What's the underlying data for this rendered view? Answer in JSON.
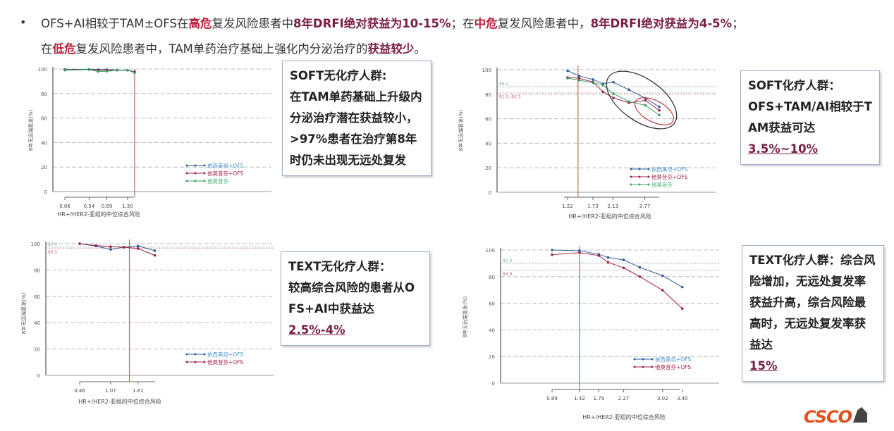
{
  "header": {
    "line1": [
      {
        "t": "OFS+AI相较于TAM±OFS在",
        "s": ""
      },
      {
        "t": "高危",
        "s": "red"
      },
      {
        "t": "复发风险患者中",
        "s": ""
      },
      {
        "t": "8年DRFI绝对获益为10-15%",
        "s": "mar"
      },
      {
        "t": "；在",
        "s": ""
      },
      {
        "t": "中危",
        "s": "red"
      },
      {
        "t": "复发风险患者中，",
        "s": ""
      },
      {
        "t": "8年DRFI绝对获益为4-5%",
        "s": "mar"
      },
      {
        "t": "；",
        "s": ""
      }
    ],
    "line2": [
      {
        "t": "在",
        "s": ""
      },
      {
        "t": "低危",
        "s": "red"
      },
      {
        "t": "复发风险患者中，TAM单药治疗基础上强化内分泌治疗的",
        "s": ""
      },
      {
        "t": "获益较少",
        "s": "mar"
      },
      {
        "t": "。",
        "s": ""
      }
    ],
    "bullet": "•"
  },
  "boxes": [
    {
      "title": "SOFT无化疗人群:",
      "body": "在TAM单药基础上升级内分泌治疗潜在获益较小，>97%患者在治疗第8年时仍未出现无远处复发",
      "pct": ""
    },
    {
      "title": "SOFT化疗人群：",
      "body": "OFS+TAM/AI相较于TAM获益可达",
      "pct": "3.5%~10%"
    },
    {
      "title": "TEXT无化疗人群：",
      "body": "较高综合风险的患者从OFS+AI中获益达",
      "pct": "2.5%-4%"
    },
    {
      "title": "TEXT化疗人群：",
      "body": "综合风险增加，无远处复发率获益升高，综合风险最高时，无远处复发率获益达",
      "pct": "15%"
    }
  ],
  "logo": "CSCO",
  "colors": {
    "blue": "#2f5f9a",
    "red": "#a0204a",
    "green": "#3aa060",
    "legend_blue": "#4a90c8",
    "legend_red": "#a0204a",
    "legend_green": "#4aab70"
  },
  "chart_data": [
    {
      "type": "line",
      "xlabel": "HR+/HER2-亚组的中位综合风险",
      "ylabel": "8年无远端复发(%)",
      "ylim": [
        0,
        100
      ],
      "yticks": [
        0,
        20,
        40,
        60,
        80,
        100
      ],
      "xticks": [
        0.06,
        0.54,
        0.89,
        1.3
      ],
      "xtick_labels": [
        "0.06",
        "0.54",
        "0.89",
        "1.30"
      ],
      "grid": true,
      "legend": "bottom-right",
      "vline": 1.44,
      "ref_lines": [],
      "series": [
        {
          "name": "依西美坦+OFS",
          "color": "blue",
          "x": [
            0.06,
            0.54,
            0.72,
            0.89,
            1.09,
            1.3,
            1.44
          ],
          "y": [
            99.6,
            99.8,
            99.5,
            99.5,
            99.2,
            99.0,
            97.8
          ]
        },
        {
          "name": "他莫昔芬+OFS",
          "color": "red",
          "x": [
            0.06,
            0.54,
            0.72,
            0.89,
            1.09,
            1.3,
            1.44
          ],
          "y": [
            99.3,
            99.5,
            99.0,
            99.0,
            99.0,
            99.0,
            97.5
          ]
        },
        {
          "name": "他莫昔芬",
          "color": "green",
          "x": [
            0.06,
            0.54,
            0.72,
            0.89,
            1.09,
            1.3,
            1.44
          ],
          "y": [
            99.0,
            99.5,
            98.0,
            98.2,
            99.0,
            99.0,
            97.0
          ]
        }
      ]
    },
    {
      "type": "line",
      "xlabel": "HR+/HER2-亚组的中位综合风险",
      "ylabel": "8年无远端复发(%)",
      "ylim": [
        0,
        100
      ],
      "yticks": [
        0,
        20,
        40,
        60,
        80,
        100
      ],
      "xticks": [
        1.22,
        1.73,
        2.13,
        2.77
      ],
      "xtick_labels": [
        "1.22",
        "1.73",
        "2.13",
        "2.77"
      ],
      "grid": true,
      "legend": "bottom-right",
      "vline": 1.43,
      "ref_lines": [
        {
          "value": 86.2,
          "label": "86.2"
        },
        {
          "value": 81.0,
          "label": "81.0, 80.3"
        }
      ],
      "series": [
        {
          "name": "依西美坦+OFS",
          "color": "blue",
          "x": [
            1.22,
            1.45,
            1.73,
            1.93,
            2.14,
            2.45,
            2.78,
            3.06
          ],
          "y": [
            99.2,
            95.0,
            92.0,
            88.5,
            89.8,
            83.7,
            76.8,
            69.7
          ]
        },
        {
          "name": "他莫昔芬+OFS",
          "color": "red",
          "x": [
            1.22,
            1.45,
            1.73,
            1.93,
            2.14,
            2.45,
            2.78,
            3.06
          ],
          "y": [
            93.7,
            93.0,
            90.0,
            82.0,
            77.0,
            73.0,
            75.0,
            66.8
          ]
        },
        {
          "name": "他莫昔芬",
          "color": "green",
          "x": [
            1.22,
            1.45,
            1.73,
            1.93,
            2.14,
            2.45,
            2.78,
            3.06
          ],
          "y": [
            93.0,
            91.4,
            89.4,
            87.5,
            80.4,
            74.0,
            71.0,
            63.0
          ]
        }
      ]
    },
    {
      "type": "line",
      "xlabel": "HR+/HER2-亚组的中位综合风险",
      "ylabel": "8年无远端复发(%)",
      "ylim": [
        0,
        100
      ],
      "yticks": [
        0,
        20,
        40,
        60,
        80,
        100
      ],
      "xticks": [
        0.46,
        1.07,
        1.61
      ],
      "xtick_labels": [
        "0.46",
        "1.07",
        "1.61"
      ],
      "grid": true,
      "legend": "bottom-right",
      "vline": 1.44,
      "ref_lines": [
        {
          "value": 97.4,
          "label": "97.4"
        },
        {
          "value": 96.5,
          "label": "96.5"
        }
      ],
      "series": [
        {
          "name": "依西美坦+OFS",
          "color": "blue",
          "x": [
            0.46,
            0.78,
            1.07,
            1.33,
            1.61,
            1.94
          ],
          "y": [
            100,
            98.2,
            95.6,
            97.3,
            98.2,
            94.7
          ]
        },
        {
          "name": "他莫昔芬+OFS",
          "color": "red",
          "x": [
            0.46,
            0.78,
            1.07,
            1.33,
            1.61,
            1.94
          ],
          "y": [
            100,
            98.6,
            97.7,
            97.3,
            96.3,
            91.1
          ]
        }
      ]
    },
    {
      "type": "line",
      "xlabel": "HR+/HER2-亚组的中位综合风险",
      "ylabel": "8年无远端复发(%)",
      "ylim": [
        0,
        100
      ],
      "yticks": [
        0,
        20,
        40,
        60,
        80,
        100
      ],
      "xticks": [
        0.89,
        1.42,
        1.79,
        2.27,
        3.02,
        3.4
      ],
      "xtick_labels": [
        "0.89",
        "1.42",
        "1.79",
        "2.27",
        "3.02",
        "3.40"
      ],
      "grid": true,
      "legend": "bottom-right",
      "vline": 1.42,
      "ref_lines": [
        {
          "value": 90.0,
          "label": "90.0"
        },
        {
          "value": 84.9,
          "label": "84.9"
        }
      ],
      "series": [
        {
          "name": "依西美坦+OFS",
          "color": "blue",
          "x": [
            0.89,
            1.42,
            1.79,
            1.97,
            2.27,
            2.58,
            3.02,
            3.4
          ],
          "y": [
            100,
            99.5,
            96.8,
            94.4,
            92.6,
            87.0,
            80.7,
            72.2
          ]
        },
        {
          "name": "他莫昔芬+OFS",
          "color": "red",
          "x": [
            0.89,
            1.42,
            1.79,
            1.97,
            2.27,
            2.58,
            3.02,
            3.4
          ],
          "y": [
            96.5,
            98.0,
            95.8,
            90.7,
            86.6,
            80.0,
            69.8,
            56.0
          ]
        }
      ]
    }
  ]
}
